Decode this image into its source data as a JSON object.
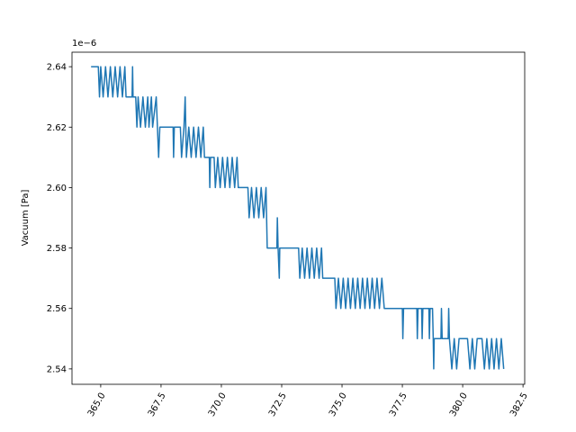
{
  "chart_data": {
    "type": "line",
    "y_label": "Vacuum [Pa]",
    "y_offset_label": "1e−6",
    "color": "#1f77b4",
    "xlim": [
      363.81,
      382.57
    ],
    "ylim": [
      2.5349,
      2.6448
    ],
    "xticks": [
      {
        "value": 365.0,
        "label": "365.0"
      },
      {
        "value": 367.5,
        "label": "367.5"
      },
      {
        "value": 370.0,
        "label": "370.0"
      },
      {
        "value": 372.5,
        "label": "372.5"
      },
      {
        "value": 375.0,
        "label": "375.0"
      },
      {
        "value": 377.5,
        "label": "377.5"
      },
      {
        "value": 380.0,
        "label": "380.0"
      },
      {
        "value": 382.5,
        "label": "382.5"
      }
    ],
    "yticks": [
      2.54,
      2.56,
      2.58,
      {
        "value": 2.6,
        "label": "2.60"
      },
      2.62,
      2.64
    ],
    "x": [
      364.6,
      364.9,
      364.95,
      365.0,
      365.1,
      365.2,
      365.3,
      365.4,
      365.5,
      365.6,
      365.7,
      365.8,
      365.9,
      366.0,
      366.05,
      366.3,
      366.32,
      366.34,
      366.45,
      366.5,
      366.55,
      366.65,
      366.75,
      366.85,
      366.95,
      367.0,
      367.1,
      367.15,
      367.3,
      367.35,
      367.4,
      367.45,
      368.0,
      368.02,
      368.05,
      368.3,
      368.35,
      368.45,
      368.5,
      368.55,
      368.65,
      368.75,
      368.85,
      368.95,
      369.05,
      369.15,
      369.25,
      369.3,
      369.5,
      369.52,
      369.55,
      369.7,
      369.75,
      369.85,
      369.95,
      370.05,
      370.15,
      370.25,
      370.35,
      370.45,
      370.55,
      370.65,
      370.7,
      371.1,
      371.15,
      371.25,
      371.35,
      371.45,
      371.55,
      371.65,
      371.75,
      371.85,
      371.9,
      372.3,
      372.32,
      372.35,
      372.4,
      372.42,
      373.2,
      373.25,
      373.35,
      373.45,
      373.55,
      373.65,
      373.75,
      373.85,
      373.95,
      374.05,
      374.15,
      374.2,
      374.7,
      374.75,
      374.85,
      374.95,
      375.05,
      375.15,
      375.25,
      375.35,
      375.45,
      375.55,
      375.65,
      375.75,
      375.85,
      375.95,
      376.05,
      376.15,
      376.25,
      376.35,
      376.45,
      376.55,
      376.65,
      376.75,
      377.5,
      377.52,
      377.55,
      378.1,
      378.12,
      378.15,
      378.3,
      378.32,
      378.35,
      378.6,
      378.62,
      378.65,
      378.75,
      378.78,
      378.8,
      378.82,
      379.1,
      379.12,
      379.15,
      379.4,
      379.42,
      379.45,
      379.55,
      379.65,
      379.75,
      379.85,
      380.2,
      380.3,
      380.4,
      380.5,
      380.6,
      380.8,
      380.9,
      381.0,
      381.1,
      381.2,
      381.3,
      381.4,
      381.5,
      381.6,
      381.7
    ],
    "values": [
      2.64,
      2.64,
      2.63,
      2.64,
      2.63,
      2.64,
      2.63,
      2.64,
      2.63,
      2.64,
      2.63,
      2.64,
      2.63,
      2.64,
      2.63,
      2.63,
      2.64,
      2.63,
      2.63,
      2.62,
      2.63,
      2.62,
      2.63,
      2.62,
      2.63,
      2.62,
      2.63,
      2.62,
      2.63,
      2.62,
      2.61,
      2.62,
      2.62,
      2.61,
      2.62,
      2.62,
      2.61,
      2.62,
      2.63,
      2.61,
      2.62,
      2.61,
      2.62,
      2.61,
      2.62,
      2.61,
      2.62,
      2.61,
      2.61,
      2.6,
      2.61,
      2.61,
      2.6,
      2.61,
      2.6,
      2.61,
      2.6,
      2.61,
      2.6,
      2.61,
      2.6,
      2.61,
      2.6,
      2.6,
      2.59,
      2.6,
      2.59,
      2.6,
      2.59,
      2.6,
      2.59,
      2.6,
      2.58,
      2.58,
      2.59,
      2.58,
      2.57,
      2.58,
      2.58,
      2.57,
      2.58,
      2.57,
      2.58,
      2.57,
      2.58,
      2.57,
      2.58,
      2.57,
      2.58,
      2.57,
      2.57,
      2.56,
      2.57,
      2.56,
      2.57,
      2.56,
      2.57,
      2.56,
      2.57,
      2.56,
      2.57,
      2.56,
      2.57,
      2.56,
      2.57,
      2.56,
      2.57,
      2.56,
      2.57,
      2.56,
      2.57,
      2.56,
      2.56,
      2.55,
      2.56,
      2.56,
      2.55,
      2.56,
      2.56,
      2.55,
      2.56,
      2.56,
      2.55,
      2.56,
      2.56,
      2.55,
      2.54,
      2.55,
      2.55,
      2.56,
      2.55,
      2.55,
      2.56,
      2.55,
      2.54,
      2.55,
      2.54,
      2.55,
      2.55,
      2.54,
      2.55,
      2.54,
      2.55,
      2.55,
      2.54,
      2.55,
      2.54,
      2.55,
      2.54,
      2.55,
      2.54,
      2.55,
      2.54
    ]
  }
}
